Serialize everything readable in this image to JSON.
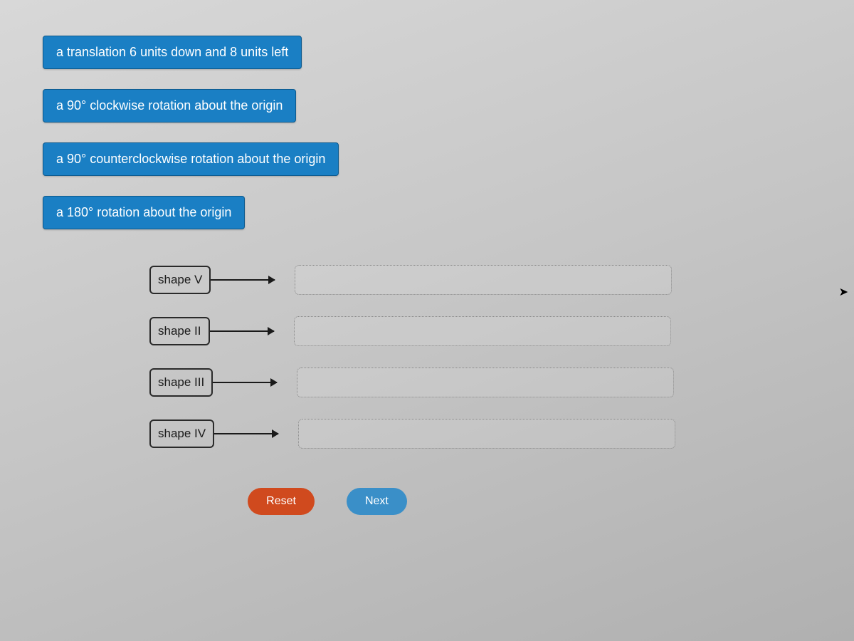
{
  "options": [
    {
      "label": "a translation 6 units down and 8 units left"
    },
    {
      "label": "a 90° clockwise rotation about the origin"
    },
    {
      "label": "a 90° counterclockwise rotation about the origin"
    },
    {
      "label": "a 180° rotation about the origin"
    }
  ],
  "shapes": [
    {
      "label": "shape V"
    },
    {
      "label": "shape II"
    },
    {
      "label": "shape III"
    },
    {
      "label": "shape IV"
    }
  ],
  "buttons": {
    "reset": "Reset",
    "next": "Next"
  },
  "colors": {
    "option_bg": "#1a7fc4",
    "option_text": "#ffffff",
    "option_border": "#0d5a8e",
    "shape_border": "#2a2a2a",
    "shape_text": "#1a1a1a",
    "arrow_color": "#1a1a1a",
    "dropzone_border": "#888888",
    "reset_bg": "#d04a1e",
    "next_bg": "#3a8fc8",
    "button_text": "#ffffff",
    "page_bg_start": "#d8d8d8",
    "page_bg_end": "#b0b0b0"
  },
  "layout": {
    "option_font_size": 18,
    "shape_font_size": 17,
    "button_font_size": 16,
    "dropzone_width": 530,
    "dropzone_height": 42,
    "arrow_length": 90
  }
}
